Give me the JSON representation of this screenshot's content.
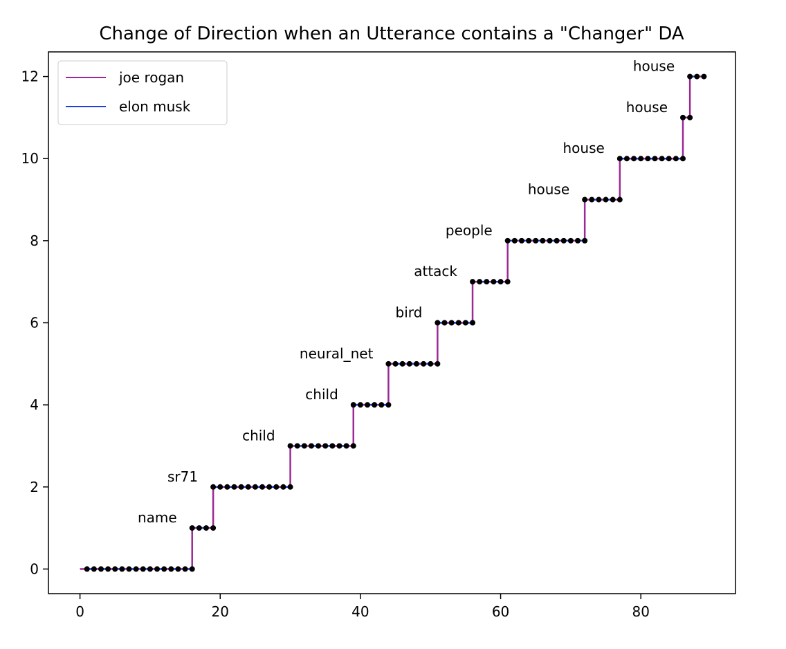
{
  "chart_data": {
    "type": "line",
    "title": "Change of Direction when an Utterance contains a \"Changer\" DA",
    "xlabel": "",
    "ylabel": "",
    "xlim": [
      -4.5,
      93.5
    ],
    "ylim": [
      -0.6,
      12.6
    ],
    "xticks": [
      0,
      20,
      40,
      60,
      80
    ],
    "yticks": [
      0,
      2,
      4,
      6,
      8,
      10,
      12
    ],
    "grid": false,
    "legend_position": "top-left",
    "colors": {
      "joe rogan": "#9b2a96",
      "elon musk": "#1f3ee0",
      "marker": "#000000"
    },
    "series": [
      {
        "name": "joe rogan"
      },
      {
        "name": "elon musk"
      }
    ],
    "path": {
      "start": [
        0,
        0
      ],
      "steps": [
        {
          "x": 1,
          "y": 0
        },
        {
          "x": 16,
          "y": 0
        },
        {
          "x": 16,
          "y": 1
        },
        {
          "x": 19,
          "y": 1
        },
        {
          "x": 19,
          "y": 2
        },
        {
          "x": 30,
          "y": 2
        },
        {
          "x": 30,
          "y": 3
        },
        {
          "x": 39,
          "y": 3
        },
        {
          "x": 39,
          "y": 4
        },
        {
          "x": 44,
          "y": 4
        },
        {
          "x": 44,
          "y": 5
        },
        {
          "x": 51,
          "y": 5
        },
        {
          "x": 51,
          "y": 6
        },
        {
          "x": 56,
          "y": 6
        },
        {
          "x": 56,
          "y": 7
        },
        {
          "x": 61,
          "y": 7
        },
        {
          "x": 61,
          "y": 8
        },
        {
          "x": 72,
          "y": 8
        },
        {
          "x": 72,
          "y": 9
        },
        {
          "x": 77,
          "y": 9
        },
        {
          "x": 77,
          "y": 10
        },
        {
          "x": 86,
          "y": 10
        },
        {
          "x": 86,
          "y": 11
        },
        {
          "x": 87,
          "y": 11
        },
        {
          "x": 87,
          "y": 12
        },
        {
          "x": 89,
          "y": 12
        }
      ]
    },
    "annotations": [
      {
        "text": "name",
        "x": 16,
        "y": 1
      },
      {
        "text": "sr71",
        "x": 19,
        "y": 2
      },
      {
        "text": "child",
        "x": 30,
        "y": 3
      },
      {
        "text": "child",
        "x": 39,
        "y": 4
      },
      {
        "text": "neural_net",
        "x": 44,
        "y": 5
      },
      {
        "text": "bird",
        "x": 51,
        "y": 6
      },
      {
        "text": "attack",
        "x": 56,
        "y": 7
      },
      {
        "text": "people",
        "x": 61,
        "y": 8
      },
      {
        "text": "house",
        "x": 72,
        "y": 9
      },
      {
        "text": "house",
        "x": 77,
        "y": 10
      },
      {
        "text": "house",
        "x": 86,
        "y": 11
      },
      {
        "text": "house",
        "x": 87,
        "y": 12
      }
    ]
  }
}
